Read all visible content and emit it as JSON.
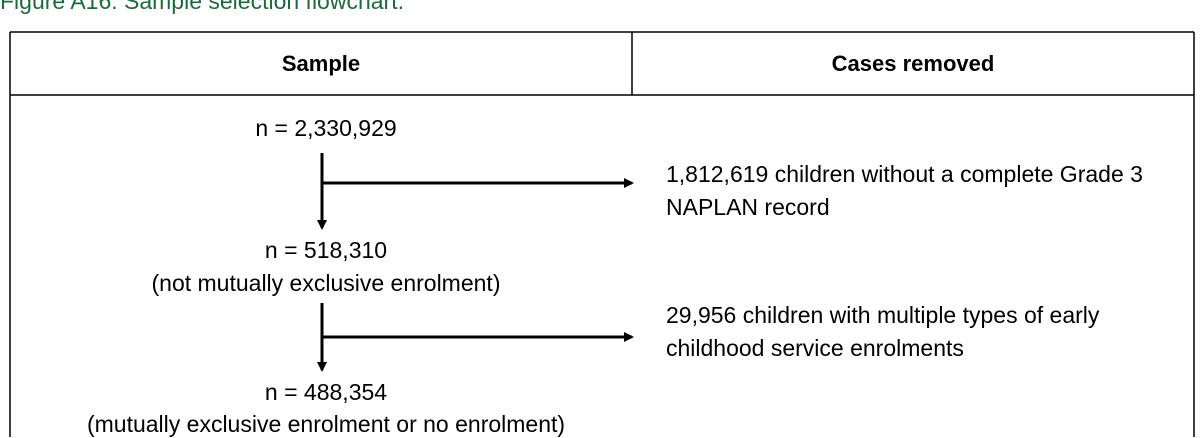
{
  "title": "Figure A16: Sample selection flowchart.",
  "table": {
    "headers": [
      "Sample",
      "Cases removed"
    ]
  },
  "steps": [
    {
      "sample": "n = 2,330,929"
    },
    {
      "sample": "n = 518,310",
      "note": "(not mutually exclusive enrolment)"
    },
    {
      "sample": "n = 488,354",
      "note": "(mutually exclusive enrolment or no enrolment)"
    }
  ],
  "removed": [
    "1,812,619 children without a complete Grade 3 NAPLAN record",
    "29,956 children with multiple types of early childhood service enrolments"
  ]
}
